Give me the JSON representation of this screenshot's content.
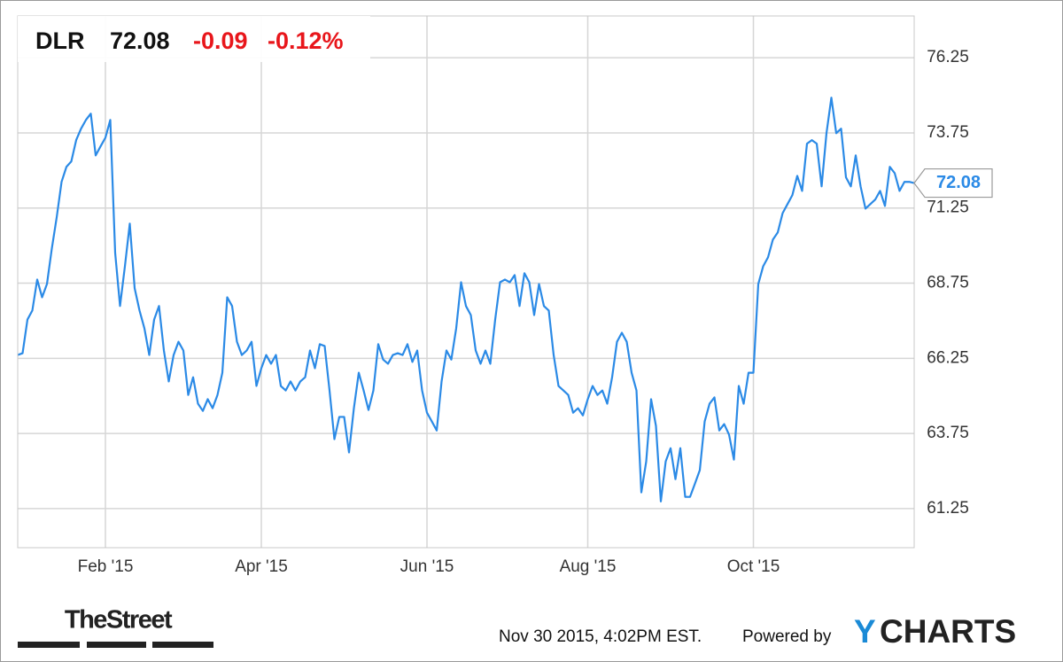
{
  "chart_data": {
    "type": "line",
    "ticker": "DLR",
    "change": "-0.09",
    "change_pct": "-0.12%",
    "source_logo": "TheStreet",
    "timestamp": "Nov 30 2015, 4:02PM EST.",
    "powered_by": "Powered by",
    "brand_mark": "Y",
    "brand": "CHARTS",
    "color": "#2b8ae6",
    "grid": true,
    "ylim": [
      59.95,
      77.64
    ],
    "yticks": [
      61.25,
      63.75,
      66.25,
      68.75,
      71.25,
      73.75,
      76.25
    ],
    "categories": [
      null,
      null,
      null,
      null,
      null,
      null,
      null,
      null,
      null,
      null,
      null,
      null,
      null,
      null,
      null,
      null,
      null,
      null,
      "Feb '15",
      null,
      null,
      null,
      null,
      null,
      null,
      null,
      null,
      null,
      null,
      null,
      null,
      null,
      null,
      null,
      null,
      null,
      null,
      null,
      null,
      null,
      null,
      null,
      null,
      null,
      null,
      null,
      null,
      null,
      null,
      null,
      "Apr '15",
      null,
      null,
      null,
      null,
      null,
      null,
      null,
      null,
      null,
      null,
      null,
      null,
      null,
      null,
      null,
      null,
      null,
      null,
      null,
      null,
      null,
      null,
      null,
      null,
      null,
      null,
      null,
      null,
      null,
      null,
      null,
      null,
      null,
      "Jun '15",
      null,
      null,
      null,
      null,
      null,
      null,
      null,
      null,
      null,
      null,
      null,
      null,
      null,
      null,
      null,
      null,
      null,
      null,
      null,
      null,
      null,
      null,
      null,
      null,
      null,
      null,
      null,
      null,
      null,
      null,
      null,
      null,
      "Aug '15",
      null,
      null,
      null,
      null,
      null,
      null,
      null,
      null,
      null,
      null,
      null,
      null,
      null,
      null,
      null,
      null,
      null,
      null,
      null,
      null,
      null,
      null,
      null,
      null,
      null,
      null,
      null,
      null,
      null,
      null,
      null,
      null,
      null,
      "Oct '15",
      null,
      null,
      null,
      null,
      null,
      null,
      null,
      null,
      null,
      null,
      null,
      null,
      null,
      null,
      null,
      null,
      null,
      null,
      null,
      null,
      null,
      null,
      null,
      null,
      null,
      null,
      null,
      null,
      null,
      null,
      null,
      null,
      null
    ],
    "values": [
      66.36,
      66.42,
      67.54,
      67.84,
      68.87,
      68.28,
      68.72,
      69.9,
      70.94,
      72.12,
      72.62,
      72.8,
      73.51,
      73.89,
      74.18,
      74.39,
      73.0,
      73.3,
      73.59,
      74.18,
      69.76,
      67.99,
      69.31,
      70.73,
      68.58,
      67.84,
      67.25,
      66.36,
      67.54,
      67.99,
      66.51,
      65.48,
      66.36,
      66.8,
      66.51,
      65.03,
      65.62,
      64.74,
      64.5,
      64.89,
      64.59,
      65.03,
      65.77,
      68.28,
      67.99,
      66.8,
      66.36,
      66.51,
      66.8,
      65.33,
      65.92,
      66.36,
      66.07,
      66.36,
      65.33,
      65.18,
      65.48,
      65.18,
      65.48,
      65.62,
      66.51,
      65.92,
      66.72,
      66.66,
      65.18,
      63.56,
      64.3,
      64.3,
      63.12,
      64.59,
      65.77,
      65.18,
      64.53,
      65.18,
      66.72,
      66.21,
      66.07,
      66.36,
      66.42,
      66.36,
      66.72,
      66.13,
      66.51,
      65.18,
      64.44,
      64.15,
      63.85,
      65.48,
      66.51,
      66.21,
      67.25,
      68.78,
      67.99,
      67.69,
      66.51,
      66.07,
      66.51,
      66.07,
      67.54,
      68.78,
      68.87,
      68.78,
      69.02,
      67.99,
      69.08,
      68.78,
      67.69,
      68.72,
      67.99,
      67.84,
      66.36,
      65.33,
      65.18,
      65.03,
      64.44,
      64.59,
      64.35,
      64.89,
      65.33,
      65.03,
      65.18,
      64.74,
      65.62,
      66.8,
      67.1,
      66.8,
      65.77,
      65.18,
      61.79,
      62.82,
      64.89,
      64.0,
      61.49,
      62.82,
      63.26,
      62.23,
      63.26,
      61.64,
      61.64,
      62.08,
      62.53,
      64.15,
      64.74,
      64.95,
      63.85,
      64.06,
      63.71,
      62.88,
      65.33,
      64.74,
      65.77,
      65.77,
      68.72,
      69.31,
      69.61,
      70.2,
      70.44,
      71.08,
      71.38,
      71.68,
      72.32,
      71.82,
      73.39,
      73.51,
      73.39,
      71.97,
      73.74,
      74.92,
      73.74,
      73.89,
      72.27,
      71.97,
      73.0,
      71.97,
      71.23,
      71.38,
      71.53,
      71.82,
      71.32,
      72.62,
      72.41,
      71.82,
      72.12,
      72.12,
      72.08
    ]
  }
}
